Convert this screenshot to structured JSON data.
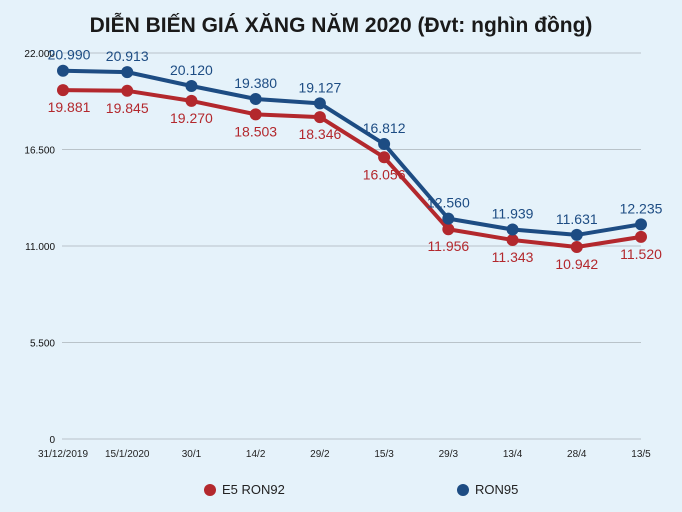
{
  "chart_data": {
    "type": "line",
    "title": "DIỄN BIẾN GIÁ XĂNG NĂM 2020 (Đvt: nghìn đồng)",
    "categories": [
      "31/12/2019",
      "15/1/2020",
      "30/1",
      "14/2",
      "29/2",
      "15/3",
      "29/3",
      "13/4",
      "28/4",
      "13/5"
    ],
    "ylim": [
      0,
      22000
    ],
    "yticks": [
      0,
      5500,
      11000,
      16500,
      22000
    ],
    "ytick_labels": [
      "0",
      "5.500",
      "11.000",
      "16.500",
      "22.000"
    ],
    "grid": true,
    "legend": "bottom",
    "series": [
      {
        "name": "E5 RON92",
        "color": "#b3282d",
        "values": [
          19881,
          19845,
          19270,
          18503,
          18346,
          16056,
          11956,
          11343,
          10942,
          11520
        ],
        "labels": [
          "19.881",
          "19.845",
          "19.270",
          "18.503",
          "18.346",
          "16.056",
          "11.956",
          "11.343",
          "10.942",
          "11.520"
        ]
      },
      {
        "name": "RON95",
        "color": "#1d4c83",
        "values": [
          20990,
          20913,
          20120,
          19380,
          19127,
          16812,
          12560,
          11939,
          11631,
          12235
        ],
        "labels": [
          "20.990",
          "20.913",
          "20.120",
          "19.380",
          "19.127",
          "16.812",
          "12.560",
          "11.939",
          "11.631",
          "12.235"
        ]
      }
    ]
  }
}
